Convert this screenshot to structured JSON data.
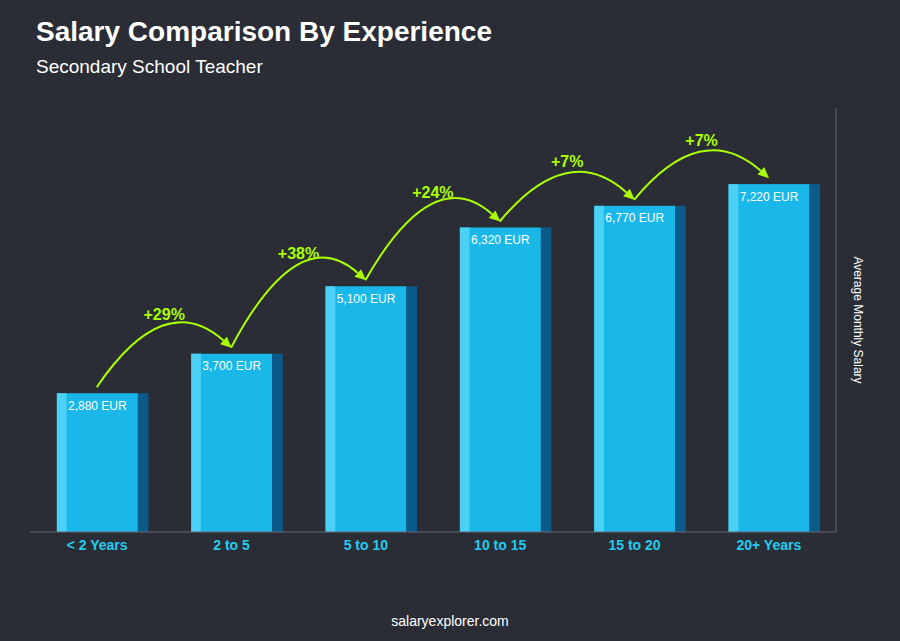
{
  "chart_data": {
    "type": "bar",
    "title": "Salary Comparison By Experience",
    "subtitle": "Secondary School Teacher",
    "categories": [
      "< 2 Years",
      "2 to 5",
      "5 to 10",
      "10 to 15",
      "15 to 20",
      "20+ Years"
    ],
    "values": [
      2880,
      3700,
      5100,
      6320,
      6770,
      7220
    ],
    "value_labels": [
      "2,880 EUR",
      "3,700 EUR",
      "5,100 EUR",
      "6,320 EUR",
      "6,770 EUR",
      "7,220 EUR"
    ],
    "data_labels": true,
    "color": "#1ab8e8",
    "ylim": [
      0,
      8800
    ],
    "ylabel": "Average Monthly Salary",
    "tick_labels": "x",
    "grid": false,
    "pct_changes": [
      null,
      "+29%",
      "+38%",
      "+24%",
      "+7%",
      "+7%"
    ],
    "source": "salaryexplorer.com"
  }
}
